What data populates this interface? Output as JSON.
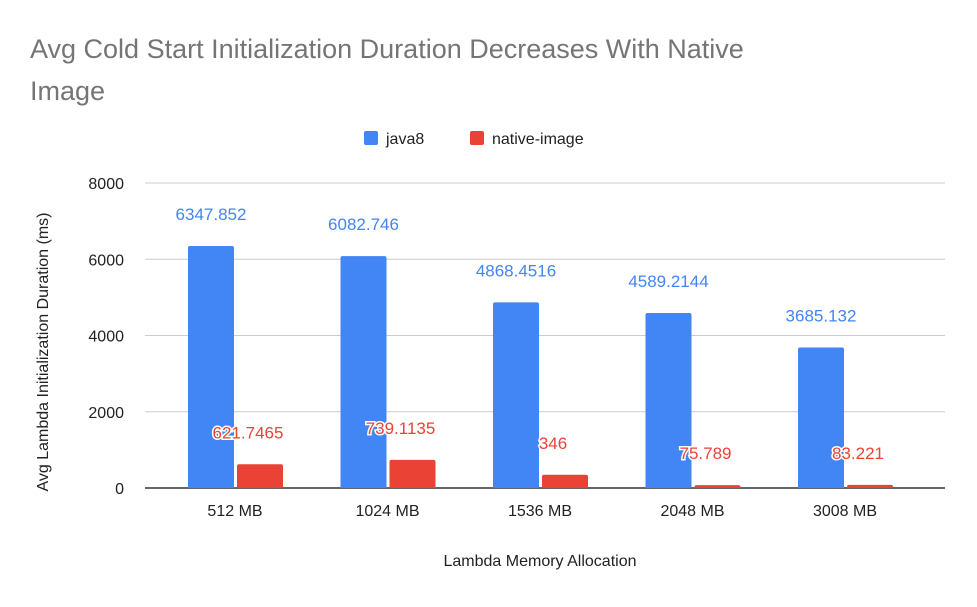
{
  "chart_data": {
    "type": "bar",
    "title": "Avg Cold Start Initialization Duration Decreases With Native Image",
    "xlabel": "Lambda Memory Allocation",
    "ylabel": "Avg Lambda Initialization Duration (ms)",
    "categories": [
      "512 MB",
      "1024 MB",
      "1536 MB",
      "2048 MB",
      "3008 MB"
    ],
    "ylim": [
      0,
      8000
    ],
    "yticks": [
      0,
      2000,
      4000,
      6000,
      8000
    ],
    "grid": true,
    "legend_position": "top",
    "series": [
      {
        "name": "java8",
        "color": "#4285f4",
        "values": [
          6347.852,
          6082.746,
          4868.4516,
          4589.2144,
          3685.132
        ],
        "labels": [
          "6347.852",
          "6082.746",
          "4868.4516",
          "4589.2144",
          "3685.132"
        ]
      },
      {
        "name": "native-image",
        "color": "#ea4335",
        "values": [
          621.7465,
          739.1135,
          346,
          75.789,
          83.221
        ],
        "labels": [
          "621.7465",
          "739.1135",
          "346",
          "75.789",
          "83.221"
        ]
      }
    ]
  }
}
